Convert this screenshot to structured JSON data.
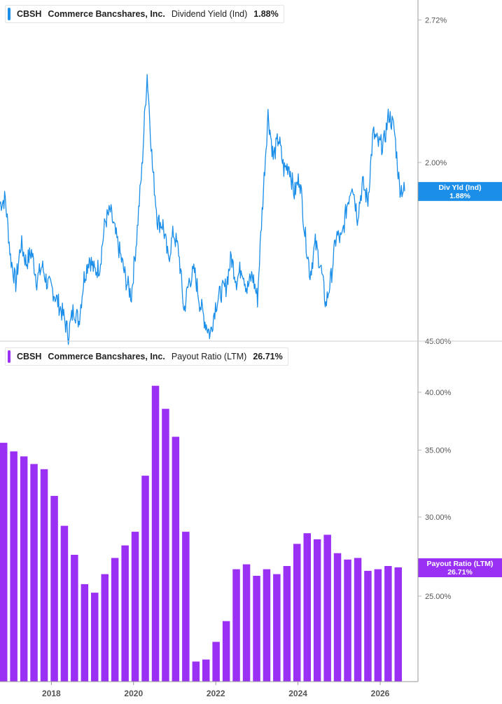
{
  "colors": {
    "dividend_yield": "#1a8ee8",
    "payout_ratio": "#9b30f5",
    "grid": "#d0d0d0",
    "tick_text": "#555555"
  },
  "legends": {
    "top": {
      "ticker": "CBSH",
      "company": "Commerce Bancshares, Inc.",
      "metric": "Dividend Yield (Ind)",
      "value": "1.88%"
    },
    "bottom": {
      "ticker": "CBSH",
      "company": "Commerce Bancshares, Inc.",
      "metric": "Payout Ratio (LTM)",
      "value": "26.71%"
    }
  },
  "chart_data": [
    {
      "type": "line",
      "series": [
        {
          "name": "Dividend Yield (Ind)",
          "x_range": [
            "2016-10",
            "2026-08"
          ],
          "values": [
            1.83,
            1.85,
            1.63,
            1.54,
            1.68,
            1.61,
            1.65,
            1.55,
            1.6,
            1.54,
            1.52,
            1.48,
            1.44,
            1.38,
            1.46,
            1.42,
            1.56,
            1.63,
            1.58,
            1.6,
            1.76,
            1.8,
            1.71,
            1.63,
            1.55,
            1.5,
            1.7,
            1.97,
            2.42,
            1.98,
            1.76,
            1.75,
            1.62,
            1.72,
            1.65,
            1.45,
            1.55,
            1.58,
            1.48,
            1.42,
            1.38,
            1.47,
            1.51,
            1.53,
            1.63,
            1.55,
            1.6,
            1.52,
            1.57,
            1.49,
            1.84,
            2.22,
            2.02,
            2.11,
            1.97,
            1.99,
            1.87,
            1.94,
            1.72,
            1.57,
            1.68,
            1.6,
            1.47,
            1.56,
            1.71,
            1.69,
            1.82,
            1.92,
            1.78,
            1.91,
            1.84,
            2.13,
            2.08,
            2.08,
            2.22,
            2.15,
            1.9,
            1.88
          ],
          "end_label": "Div Yld (Ind)",
          "end_value": "1.88%"
        }
      ],
      "y_ticks": [
        "2.72%",
        "2.00%"
      ],
      "y_tick_values": [
        2.72,
        2.0
      ],
      "ylim": [
        1.36,
        2.84
      ],
      "log_scale": true,
      "grid": false
    },
    {
      "type": "bar",
      "series": [
        {
          "name": "Payout Ratio (LTM)",
          "values": [
            35.6,
            34.9,
            34.5,
            33.9,
            33.5,
            31.5,
            29.4,
            27.5,
            25.7,
            25.2,
            26.3,
            27.3,
            28.1,
            29.0,
            33.0,
            40.6,
            38.5,
            36.1,
            29.0,
            21.5,
            21.6,
            22.5,
            23.6,
            26.6,
            26.9,
            26.2,
            26.6,
            26.3,
            26.8,
            28.2,
            28.9,
            28.5,
            28.8,
            27.6,
            27.2,
            27.3,
            26.5,
            26.6,
            26.8,
            26.71
          ],
          "end_label": "Payout Ratio (LTM)",
          "end_value": "26.71%"
        }
      ],
      "y_ticks": [
        "45.00%",
        "40.00%",
        "35.00%",
        "30.00%",
        "25.00%"
      ],
      "y_tick_values": [
        45,
        40,
        35,
        30,
        25
      ],
      "ylim": [
        20.53,
        45.0
      ],
      "log_scale": true,
      "grid": false
    }
  ],
  "x_axis": {
    "ticks": [
      "2018",
      "2020",
      "2022",
      "2024",
      "2026"
    ],
    "tick_years": [
      2018,
      2020,
      2022,
      2024,
      2026
    ],
    "range_years": [
      2016.75,
      2026.92
    ]
  }
}
